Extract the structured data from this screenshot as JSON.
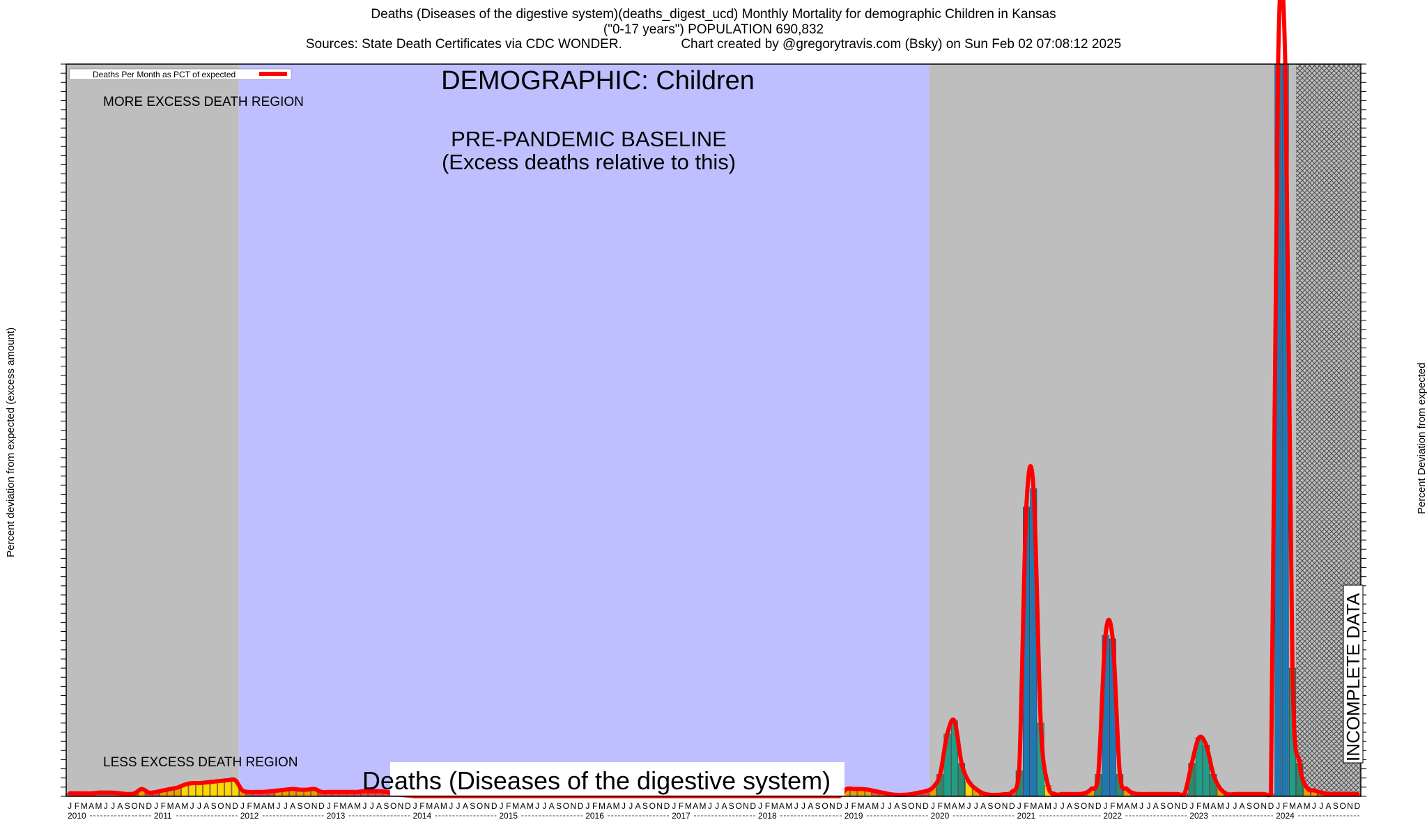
{
  "header": {
    "title_line1": "Deaths (Diseases of the digestive system)(deaths_digest_ucd) Monthly Mortality for demographic Children in Kansas",
    "title_line2": "(\"0-17 years\") POPULATION 690,832",
    "title_line3": "Sources: State Death Certificates via CDC WONDER.                Chart created by @gregorytravis.com (Bsky) on Sun Feb 02 07:08:12 2025"
  },
  "chart_data": {
    "type": "bar",
    "title": "DEMOGRAPHIC: Children",
    "subtitle": "Deaths (Diseases of the digestive system)",
    "ylabel_left": "Percent deviation from expected (excess amount)",
    "ylabel_right": "Percent Deviation from expected",
    "ylim": [
      0,
      100
    ],
    "legend": {
      "label": "Deaths Per Month as PCT of expected",
      "placement": "top-left",
      "color": "#ff0000"
    },
    "annotations": {
      "more_excess": "MORE EXCESS DEATH REGION",
      "less_excess": "LESS EXCESS DEATH REGION",
      "baseline_line1": "PRE-PANDEMIC BASELINE",
      "baseline_line2": "(Excess deaths relative to this)",
      "incomplete": "INCOMPLETE DATA"
    },
    "regions": {
      "shaded_before_baseline": {
        "start": "2010-01",
        "end": "2011-12",
        "color": "#bebebe"
      },
      "baseline": {
        "start": "2012-01",
        "end": "2019-12",
        "color": "#bfbfff"
      },
      "shaded_after_baseline": {
        "start": "2020-01",
        "end": "2024-12",
        "color": "#bebebe"
      },
      "incomplete": {
        "start": "2024-04",
        "end": "2024-12"
      }
    },
    "years": [
      "2010",
      "2011",
      "2012",
      "2013",
      "2014",
      "2015",
      "2016",
      "2017",
      "2018",
      "2019",
      "2020",
      "2021",
      "2022",
      "2023",
      "2024"
    ],
    "month_letters": [
      "J",
      "F",
      "M",
      "A",
      "M",
      "J",
      "J",
      "A",
      "S",
      "O",
      "N",
      "D"
    ],
    "series": [
      {
        "name": "Deaths Per Month as PCT of expected",
        "values": [
          0.4,
          0.4,
          0.4,
          0.4,
          0.5,
          0.5,
          0.5,
          0.4,
          0.3,
          0.4,
          1.0,
          0.5,
          0.6,
          0.8,
          1.0,
          1.2,
          1.6,
          1.8,
          1.8,
          1.9,
          2.0,
          2.1,
          2.2,
          2.2,
          0.8,
          0.6,
          0.6,
          0.6,
          0.7,
          0.8,
          0.9,
          1.0,
          0.9,
          0.9,
          1.0,
          0.6,
          0.6,
          0.6,
          0.6,
          0.6,
          0.6,
          0.7,
          0.7,
          0.7,
          0.6,
          0.4,
          0.2,
          0.1,
          0.0,
          0.0,
          0.0,
          0.0,
          0.0,
          0.0,
          0.0,
          0.0,
          0.0,
          0.0,
          0.0,
          0.0,
          0.0,
          0.0,
          0.0,
          0.0,
          0.0,
          0.0,
          0.0,
          0.0,
          0.0,
          0.0,
          0.0,
          0.0,
          0.0,
          0.0,
          0.0,
          0.0,
          0.0,
          0.0,
          0.0,
          0.0,
          0.0,
          0.0,
          0.0,
          0.0,
          0.0,
          0.0,
          0.0,
          0.0,
          0.0,
          0.0,
          0.0,
          0.0,
          0.0,
          0.0,
          0.0,
          0.0,
          0.0,
          0.0,
          0.0,
          0.0,
          0.0,
          0.0,
          0.0,
          0.0,
          0.0,
          0.0,
          0.0,
          0.0,
          1.0,
          1.0,
          1.0,
          0.9,
          0.7,
          0.5,
          0.3,
          0.2,
          0.2,
          0.3,
          0.5,
          0.7,
          1.2,
          3.0,
          8.5,
          10.3,
          4.5,
          2.0,
          1.0,
          0.4,
          0.2,
          0.2,
          0.3,
          0.6,
          3.5,
          39.5,
          42.0,
          10.0,
          1.5,
          0.3,
          0.3,
          0.3,
          0.3,
          0.4,
          1.0,
          3.0,
          22.0,
          21.5,
          3.0,
          1.0,
          0.4,
          0.3,
          0.3,
          0.3,
          0.3,
          0.3,
          0.3,
          0.4,
          4.5,
          8.0,
          7.0,
          3.0,
          1.0,
          0.3,
          0.3,
          0.3,
          0.3,
          0.3,
          0.3,
          0.3,
          100.0,
          100.0,
          17.5,
          4.5,
          1.2,
          0.8,
          0.5,
          0.3,
          0.3,
          0.3,
          0.3,
          0.3
        ]
      }
    ]
  }
}
